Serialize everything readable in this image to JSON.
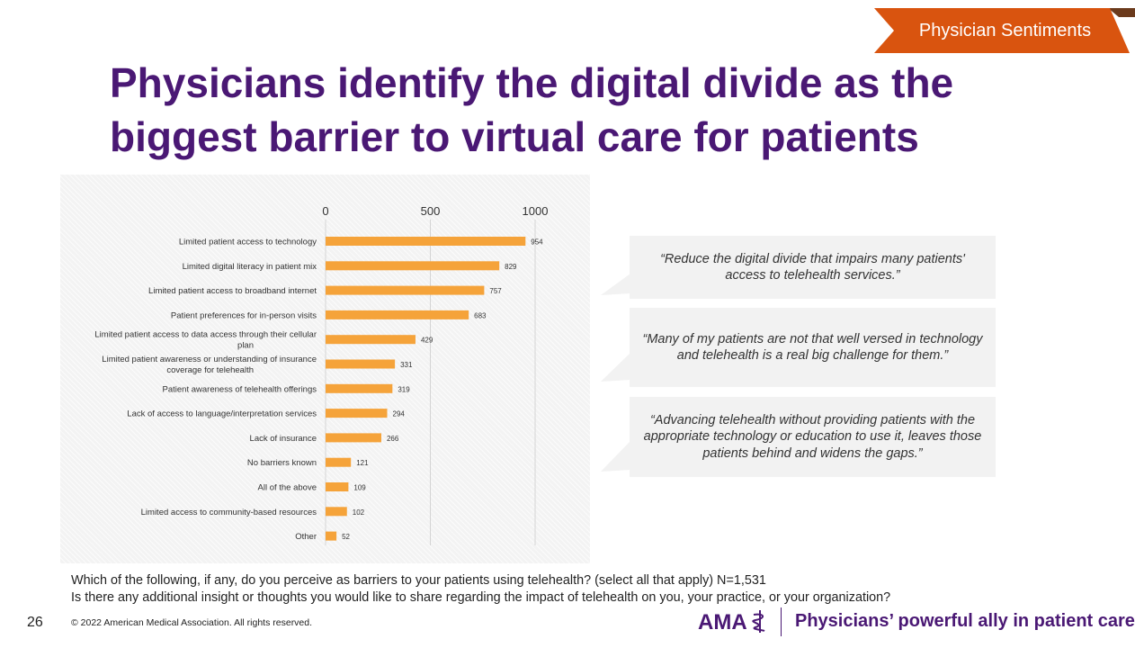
{
  "section_tag": "Physician Sentiments",
  "title_line1": "Physicians identify the digital divide as the",
  "title_line2": "biggest barrier to virtual care for patients",
  "chart_data": {
    "type": "bar",
    "orientation": "horizontal",
    "categories": [
      "Limited patient access to technology",
      "Limited digital literacy in patient mix",
      "Limited patient access to broadband internet",
      "Patient preferences for in-person visits",
      "Limited patient access to data access through their cellular plan",
      "Limited patient awareness or understanding of insurance coverage for telehealth",
      "Patient awareness of telehealth offerings",
      "Lack of access to language/interpretation services",
      "Lack of insurance",
      "No barriers known",
      "All of the above",
      "Limited access to community-based resources",
      "Other"
    ],
    "category_lines": [
      [
        "Limited patient access to technology"
      ],
      [
        "Limited digital literacy in patient mix"
      ],
      [
        "Limited patient access to broadband internet"
      ],
      [
        "Patient preferences for in-person visits"
      ],
      [
        "Limited patient access to data access through their cellular",
        "plan"
      ],
      [
        "Limited patient awareness or understanding of insurance",
        "coverage for telehealth"
      ],
      [
        "Patient awareness of telehealth offerings"
      ],
      [
        "Lack of access to language/interpretation services"
      ],
      [
        "Lack of insurance"
      ],
      [
        "No barriers known"
      ],
      [
        "All of the above"
      ],
      [
        "Limited access to community-based resources"
      ],
      [
        "Other"
      ]
    ],
    "values": [
      954,
      829,
      757,
      683,
      429,
      331,
      319,
      294,
      266,
      121,
      109,
      102,
      52
    ],
    "x_ticks": [
      0,
      500,
      1000
    ],
    "xlim": [
      0,
      1000
    ],
    "axis_position": "top",
    "bar_color": "#f5a33a",
    "title": "",
    "xlabel": "",
    "ylabel": ""
  },
  "quotes": [
    "“Reduce the digital divide that impairs many patients' access to telehealth services.”",
    "“Many of my patients are not that well versed in technology and telehealth is a real big challenge for them.”",
    "“Advancing telehealth without providing patients with the appropriate technology or education to use it, leaves those patients behind and widens the gaps.”"
  ],
  "footnote_line1": "Which of the following, if any, do you perceive as barriers to your patients using telehealth? (select all that apply) N=1,531",
  "footnote_line2": "Is there any additional insight or thoughts you would like to share regarding the impact of telehealth on you, your practice, or your organization?",
  "page_number": "26",
  "copyright": "© 2022 American Medical Association. All rights reserved.",
  "logo_text": "AMA",
  "tagline": "Physicians’ powerful ally in patient care",
  "colors": {
    "brand_purple": "#4a1874",
    "tag_orange": "#d9540f",
    "tag_dark": "#6b3a1c",
    "bar_orange": "#f5a33a"
  }
}
